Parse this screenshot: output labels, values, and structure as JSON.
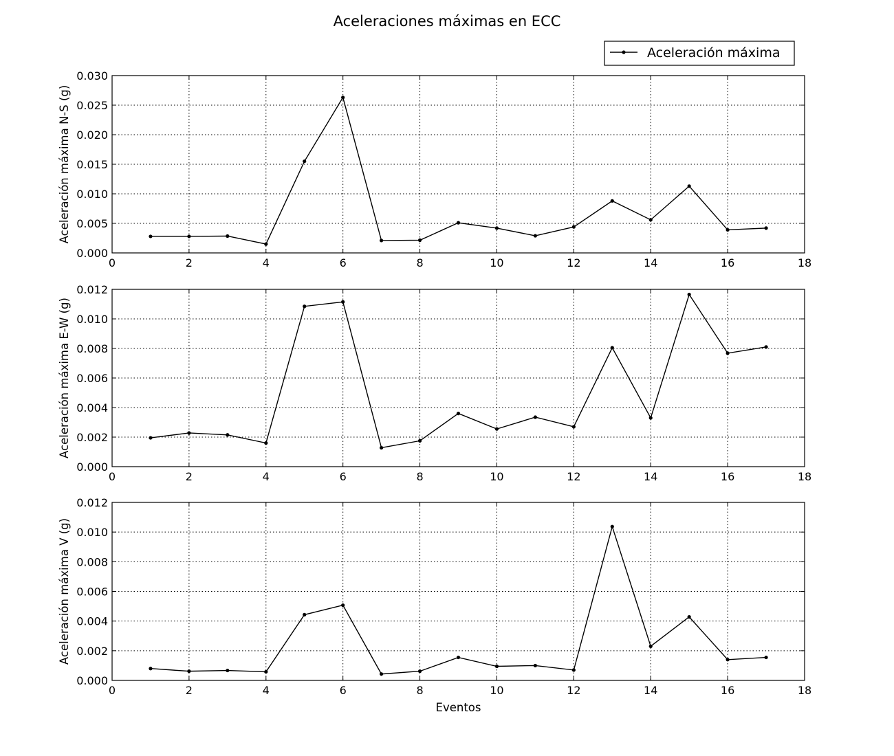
{
  "figure": {
    "title": "Aceleraciones máximas en ECC"
  },
  "legend": {
    "label": "Aceleración máxima",
    "placement": "top-right"
  },
  "chart_data": [
    {
      "type": "line",
      "title": "",
      "xlabel": "",
      "ylabel": "Aceleración máxima N-S (g)",
      "xlim": [
        0,
        18
      ],
      "ylim": [
        0,
        0.03
      ],
      "xticks": [
        0,
        2,
        4,
        6,
        8,
        10,
        12,
        14,
        16,
        18
      ],
      "xtick_labels": [
        "0",
        "2",
        "4",
        "6",
        "8",
        "10",
        "12",
        "14",
        "16",
        "18"
      ],
      "yticks": [
        0,
        0.005,
        0.01,
        0.015,
        0.02,
        0.025,
        0.03
      ],
      "ytick_labels": [
        "0.000",
        "0.005",
        "0.010",
        "0.015",
        "0.020",
        "0.025",
        "0.030"
      ],
      "grid": true,
      "series": [
        {
          "name": "Aceleración máxima",
          "x": [
            1,
            2,
            3,
            4,
            5,
            6,
            7,
            8,
            9,
            10,
            11,
            12,
            13,
            14,
            15,
            16,
            17
          ],
          "values": [
            0.0028,
            0.0028,
            0.00285,
            0.0015,
            0.0155,
            0.0263,
            0.0021,
            0.00215,
            0.0051,
            0.0042,
            0.0029,
            0.0044,
            0.0088,
            0.0056,
            0.0113,
            0.0039,
            0.0042
          ],
          "color": "#000000",
          "marker": "dot"
        }
      ]
    },
    {
      "type": "line",
      "title": "",
      "xlabel": "",
      "ylabel": "Aceleración máxima E-W (g)",
      "xlim": [
        0,
        18
      ],
      "ylim": [
        0,
        0.012
      ],
      "xticks": [
        0,
        2,
        4,
        6,
        8,
        10,
        12,
        14,
        16,
        18
      ],
      "xtick_labels": [
        "0",
        "2",
        "4",
        "6",
        "8",
        "10",
        "12",
        "14",
        "16",
        "18"
      ],
      "yticks": [
        0,
        0.002,
        0.004,
        0.006,
        0.008,
        0.01,
        0.012
      ],
      "ytick_labels": [
        "0.000",
        "0.002",
        "0.004",
        "0.006",
        "0.008",
        "0.010",
        "0.012"
      ],
      "grid": true,
      "series": [
        {
          "name": "Aceleración máxima",
          "x": [
            1,
            2,
            3,
            4,
            5,
            6,
            7,
            8,
            9,
            10,
            11,
            12,
            13,
            14,
            15,
            16,
            17
          ],
          "values": [
            0.00195,
            0.00228,
            0.00215,
            0.0016,
            0.01085,
            0.01115,
            0.00128,
            0.00175,
            0.0036,
            0.00255,
            0.00335,
            0.0027,
            0.00805,
            0.0033,
            0.01165,
            0.00768,
            0.0081
          ],
          "color": "#000000",
          "marker": "dot"
        }
      ]
    },
    {
      "type": "line",
      "title": "",
      "xlabel": "Eventos",
      "ylabel": "Aceleración máxima V (g)",
      "xlim": [
        0,
        18
      ],
      "ylim": [
        0,
        0.012
      ],
      "xticks": [
        0,
        2,
        4,
        6,
        8,
        10,
        12,
        14,
        16,
        18
      ],
      "xtick_labels": [
        "0",
        "2",
        "4",
        "6",
        "8",
        "10",
        "12",
        "14",
        "16",
        "18"
      ],
      "yticks": [
        0,
        0.002,
        0.004,
        0.006,
        0.008,
        0.01,
        0.012
      ],
      "ytick_labels": [
        "0.000",
        "0.002",
        "0.004",
        "0.006",
        "0.008",
        "0.010",
        "0.012"
      ],
      "grid": true,
      "series": [
        {
          "name": "Aceleración máxima",
          "x": [
            1,
            2,
            3,
            4,
            5,
            6,
            7,
            8,
            9,
            10,
            11,
            12,
            13,
            14,
            15,
            16,
            17
          ],
          "values": [
            0.0008,
            0.00062,
            0.00067,
            0.00058,
            0.00443,
            0.00507,
            0.00043,
            0.00062,
            0.00155,
            0.00095,
            0.001,
            0.0007,
            0.01037,
            0.0023,
            0.00428,
            0.0014,
            0.00155
          ],
          "color": "#000000",
          "marker": "dot"
        }
      ]
    }
  ]
}
